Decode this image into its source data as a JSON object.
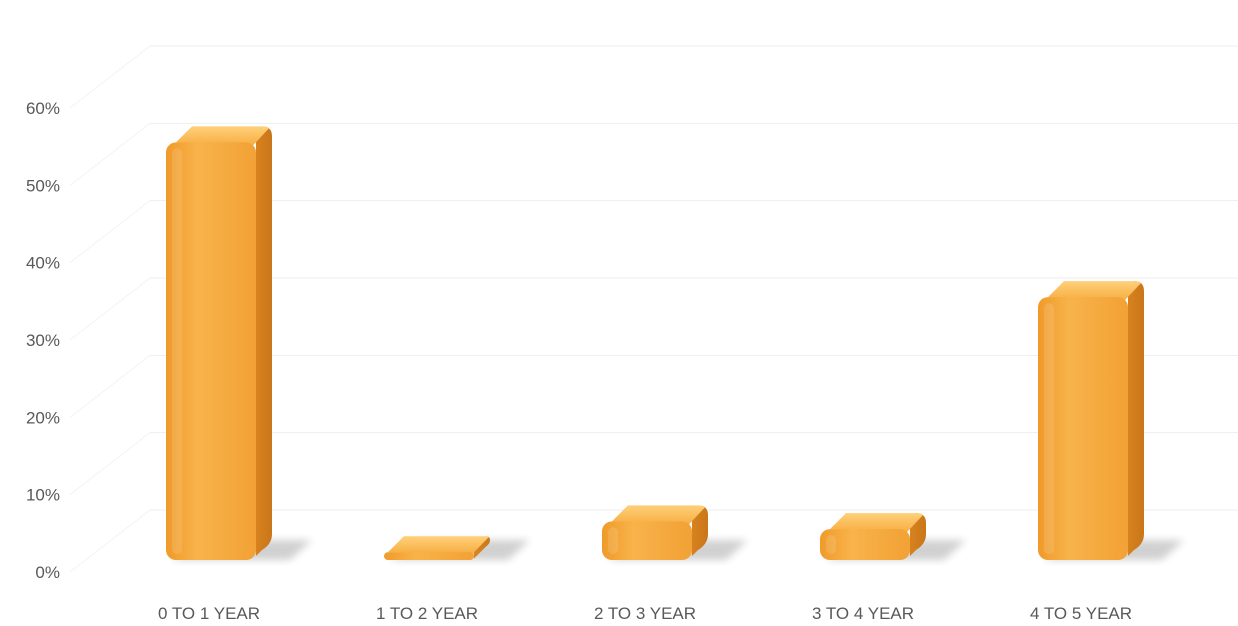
{
  "chart_data": {
    "type": "bar",
    "style": "3d-rounded-column",
    "categories": [
      "0 TO 1 YEAR",
      "1 TO 2 YEAR",
      "2 TO 3 YEAR",
      "3 TO 4 YEAR",
      "4 TO 5 YEAR"
    ],
    "values": [
      54,
      1,
      5,
      4,
      34
    ],
    "ylim": [
      0,
      60
    ],
    "yticks": [
      "0%",
      "10%",
      "20%",
      "30%",
      "40%",
      "50%",
      "60%"
    ],
    "title": "",
    "xlabel": "",
    "ylabel": "",
    "grid": true,
    "legend": "none",
    "colors": {
      "bar_front": "#f5a93b",
      "bar_side": "#d9801d",
      "bar_top": "#ffc86a",
      "grid": "#eeeeee",
      "text": "#595959"
    }
  }
}
